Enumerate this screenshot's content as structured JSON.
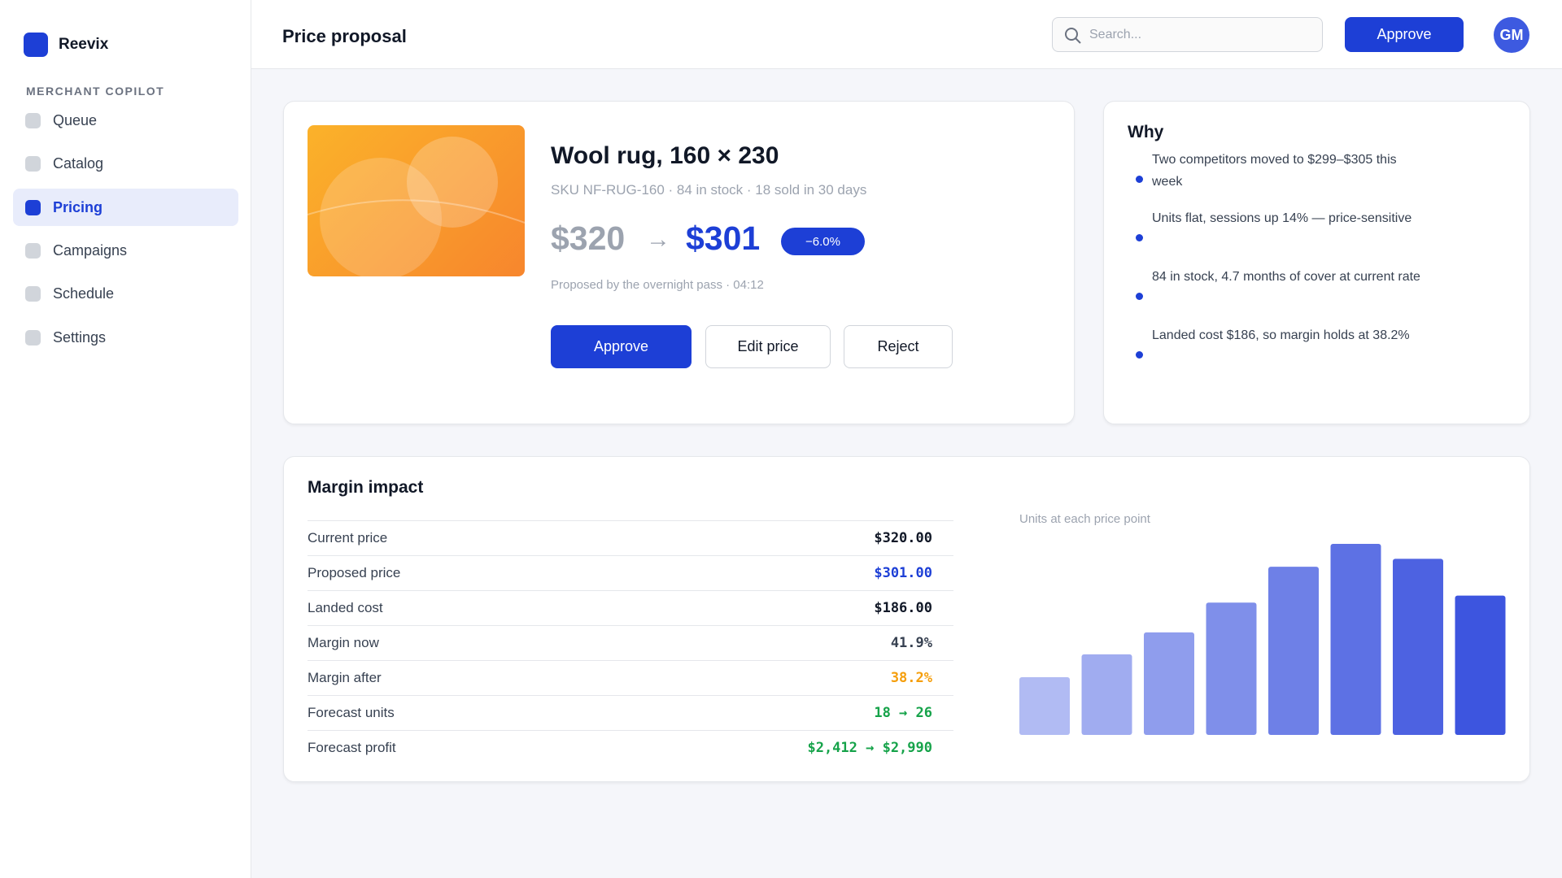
{
  "sidebar": {
    "brand": "Reevix",
    "section": "MERCHANT COPILOT",
    "nav": [
      "Queue",
      "Catalog",
      "Pricing",
      "Campaigns",
      "Schedule",
      "Settings"
    ]
  },
  "header": {
    "title": "Price proposal",
    "search": "Search...",
    "approve": "Approve",
    "avatar": "GM"
  },
  "proposal": {
    "title": "Wool rug, 160 × 230",
    "meta": "SKU NF-RUG-160 · 84 in stock · 18 sold in 30 days",
    "old_price": "$320",
    "new_price": "$301",
    "change": "−6.0%",
    "note": "Proposed by the overnight pass · 04:12",
    "buttons": [
      "Approve",
      "Edit price",
      "Reject"
    ]
  },
  "why": {
    "title": "Why",
    "items": [
      "Two competitors moved to $299–$305 this week",
      "Units flat, sessions up 14% — price-sensitive",
      "84 in stock, 4.7 months of cover at current rate",
      "Landed cost $186, so margin holds at 38.2%"
    ]
  },
  "margin": {
    "title": "Margin impact",
    "rows": [
      [
        "Current price",
        "$320.00"
      ],
      [
        "Proposed price",
        "$301.00"
      ],
      [
        "Landed cost",
        "$186.00"
      ],
      [
        "Margin now",
        "41.9%"
      ],
      [
        "Margin after",
        "38.2%"
      ],
      [
        "Forecast units",
        "18 → 26"
      ],
      [
        "Forecast profit",
        "$2,412 → $2,990"
      ]
    ],
    "row_colors": [
      "#111827",
      "#1d3fd6",
      "#111827",
      "#374151",
      "#f59e0b",
      "#16a34a",
      "#16a34a"
    ],
    "chart": {
      "type": "bar",
      "label": "Units at each price point",
      "values": [
        58,
        81,
        103,
        133,
        169,
        192,
        177,
        140
      ],
      "colors": [
        "#b1bbf3",
        "#a0acf0",
        "#8f9ded",
        "#7f8fea",
        "#6e80e7",
        "#5d71e4",
        "#4d62e1",
        "#3d55df"
      ]
    }
  }
}
